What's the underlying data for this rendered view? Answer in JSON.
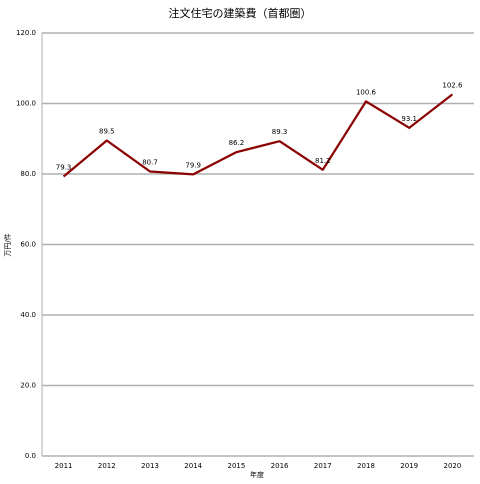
{
  "chart_data": {
    "type": "line",
    "title": "注文住宅の建築費（首都圏）",
    "x_label": "年度",
    "y_label": "万円/件",
    "categories": [
      "2011",
      "2012",
      "2013",
      "2014",
      "2015",
      "2016",
      "2017",
      "2018",
      "2019",
      "2020"
    ],
    "values": [
      79.3,
      89.5,
      80.7,
      79.9,
      86.2,
      89.3,
      81.2,
      100.6,
      93.1,
      102.6
    ],
    "color": "#8b0000",
    "ylim": [
      0,
      120
    ],
    "yticks": [
      {
        "value": 0,
        "label": "0.0"
      },
      {
        "value": 20,
        "label": "20.0"
      },
      {
        "value": 40,
        "label": "40.0"
      },
      {
        "value": 60,
        "label": "60.0"
      },
      {
        "value": 80,
        "label": "80.0"
      },
      {
        "value": 100,
        "label": "100.0"
      },
      {
        "value": 120,
        "label": "120.0"
      }
    ],
    "grid": true
  }
}
